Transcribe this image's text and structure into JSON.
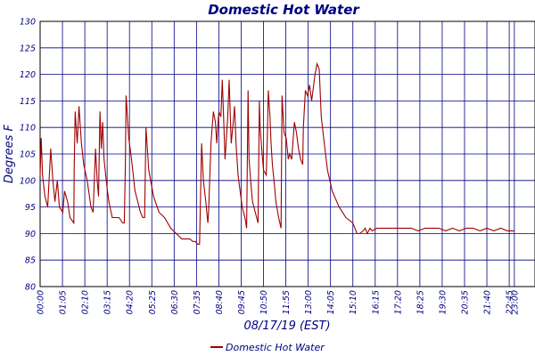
{
  "chart_data": {
    "type": "line",
    "title": "Domestic Hot Water",
    "xlabel": "08/17/19 (EST)",
    "ylabel": "Degrees F",
    "ylim": [
      80,
      130
    ],
    "yticks": [
      "80",
      "85",
      "90",
      "95",
      "100",
      "105",
      "110",
      "115",
      "120",
      "125",
      "130"
    ],
    "x_unit": "minutes since 00:00",
    "xlim": [
      0,
      1440
    ],
    "xticks": [
      {
        "label": "00:00",
        "t": 0
      },
      {
        "label": "01:05",
        "t": 65
      },
      {
        "label": "02:10",
        "t": 130
      },
      {
        "label": "03:15",
        "t": 195
      },
      {
        "label": "04:20",
        "t": 260
      },
      {
        "label": "05:25",
        "t": 325
      },
      {
        "label": "06:30",
        "t": 390
      },
      {
        "label": "07:35",
        "t": 455
      },
      {
        "label": "08:40",
        "t": 520
      },
      {
        "label": "09:45",
        "t": 585
      },
      {
        "label": "10:50",
        "t": 650
      },
      {
        "label": "11:55",
        "t": 715
      },
      {
        "label": "13:00",
        "t": 780
      },
      {
        "label": "14:05",
        "t": 845
      },
      {
        "label": "15:10",
        "t": 910
      },
      {
        "label": "16:15",
        "t": 975
      },
      {
        "label": "17:20",
        "t": 1040
      },
      {
        "label": "18:25",
        "t": 1105
      },
      {
        "label": "19:30",
        "t": 1170
      },
      {
        "label": "20:35",
        "t": 1235
      },
      {
        "label": "21:40",
        "t": 1300
      },
      {
        "label": "22:45",
        "t": 1365
      },
      {
        "label": "23:00",
        "t": 1380
      }
    ],
    "grid": true,
    "legend": "bottom-center",
    "series": [
      {
        "name": "Domestic Hot Water",
        "color": "#a00000",
        "points": [
          [
            0,
            101
          ],
          [
            3,
            108
          ],
          [
            7,
            101
          ],
          [
            14,
            97
          ],
          [
            22,
            95
          ],
          [
            31,
            106
          ],
          [
            37,
            100
          ],
          [
            43,
            96
          ],
          [
            50,
            100
          ],
          [
            56,
            95
          ],
          [
            66,
            94
          ],
          [
            71,
            98
          ],
          [
            80,
            96
          ],
          [
            87,
            93
          ],
          [
            98,
            92
          ],
          [
            99,
            102
          ],
          [
            102,
            113
          ],
          [
            108,
            107
          ],
          [
            113,
            114
          ],
          [
            120,
            107
          ],
          [
            127,
            103
          ],
          [
            137,
            100
          ],
          [
            148,
            95
          ],
          [
            154,
            94
          ],
          [
            161,
            106
          ],
          [
            166,
            100
          ],
          [
            170,
            97
          ],
          [
            174,
            113
          ],
          [
            178,
            106
          ],
          [
            182,
            111
          ],
          [
            186,
            104
          ],
          [
            194,
            99
          ],
          [
            200,
            96
          ],
          [
            210,
            93
          ],
          [
            216,
            93
          ],
          [
            230,
            93
          ],
          [
            240,
            92
          ],
          [
            245,
            92
          ],
          [
            248,
            103
          ],
          [
            250,
            116
          ],
          [
            258,
            108
          ],
          [
            266,
            104
          ],
          [
            276,
            98
          ],
          [
            284,
            96
          ],
          [
            292,
            94
          ],
          [
            299,
            93
          ],
          [
            304,
            93
          ],
          [
            308,
            110
          ],
          [
            316,
            102
          ],
          [
            330,
            97
          ],
          [
            346,
            94
          ],
          [
            362,
            93
          ],
          [
            380,
            91
          ],
          [
            396,
            90
          ],
          [
            412,
            89
          ],
          [
            428,
            89
          ],
          [
            436,
            89
          ],
          [
            444,
            88.5
          ],
          [
            452,
            88.5
          ],
          [
            458,
            88
          ],
          [
            464,
            88
          ],
          [
            468,
            101
          ],
          [
            470,
            107
          ],
          [
            475,
            100
          ],
          [
            482,
            96
          ],
          [
            488,
            92
          ],
          [
            490,
            94
          ],
          [
            497,
            107
          ],
          [
            504,
            113
          ],
          [
            510,
            111
          ],
          [
            514,
            107
          ],
          [
            520,
            113
          ],
          [
            526,
            112
          ],
          [
            530,
            119
          ],
          [
            538,
            104
          ],
          [
            546,
            112
          ],
          [
            550,
            119
          ],
          [
            556,
            107
          ],
          [
            562,
            111
          ],
          [
            566,
            114
          ],
          [
            570,
            107
          ],
          [
            576,
            101
          ],
          [
            582,
            98
          ],
          [
            588,
            95
          ],
          [
            596,
            93
          ],
          [
            601,
            91
          ],
          [
            605,
            117
          ],
          [
            608,
            104
          ],
          [
            614,
            99
          ],
          [
            618,
            96
          ],
          [
            626,
            94
          ],
          [
            634,
            92
          ],
          [
            638,
            115
          ],
          [
            640,
            110
          ],
          [
            646,
            105
          ],
          [
            650,
            102
          ],
          [
            658,
            101
          ],
          [
            661,
            108
          ],
          [
            664,
            117
          ],
          [
            669,
            112
          ],
          [
            672,
            107
          ],
          [
            676,
            103
          ],
          [
            682,
            99
          ],
          [
            686,
            96
          ],
          [
            694,
            93
          ],
          [
            701,
            91
          ],
          [
            704,
            116
          ],
          [
            710,
            109
          ],
          [
            716,
            108
          ],
          [
            722,
            104
          ],
          [
            726,
            105
          ],
          [
            732,
            104
          ],
          [
            740,
            111
          ],
          [
            746,
            109
          ],
          [
            752,
            106
          ],
          [
            758,
            104
          ],
          [
            764,
            103
          ],
          [
            766,
            110
          ],
          [
            772,
            117
          ],
          [
            778,
            116
          ],
          [
            784,
            118
          ],
          [
            790,
            115
          ],
          [
            800,
            120
          ],
          [
            806,
            122
          ],
          [
            812,
            121
          ],
          [
            818,
            112
          ],
          [
            825,
            108
          ],
          [
            836,
            102
          ],
          [
            850,
            98
          ],
          [
            870,
            95
          ],
          [
            890,
            93
          ],
          [
            910,
            92
          ],
          [
            922,
            90
          ],
          [
            930,
            90
          ],
          [
            940,
            90.5
          ],
          [
            946,
            91
          ],
          [
            952,
            90
          ],
          [
            960,
            91
          ],
          [
            966,
            90.5
          ],
          [
            980,
            91
          ],
          [
            1000,
            91
          ],
          [
            1020,
            91
          ],
          [
            1040,
            91
          ],
          [
            1060,
            91
          ],
          [
            1080,
            91
          ],
          [
            1100,
            90.5
          ],
          [
            1120,
            91
          ],
          [
            1140,
            91
          ],
          [
            1160,
            91
          ],
          [
            1180,
            90.5
          ],
          [
            1200,
            91
          ],
          [
            1220,
            90.5
          ],
          [
            1240,
            91
          ],
          [
            1260,
            91
          ],
          [
            1280,
            90.5
          ],
          [
            1300,
            91
          ],
          [
            1320,
            90.5
          ],
          [
            1340,
            91
          ],
          [
            1360,
            90.5
          ],
          [
            1380,
            90.5
          ]
        ]
      }
    ]
  }
}
